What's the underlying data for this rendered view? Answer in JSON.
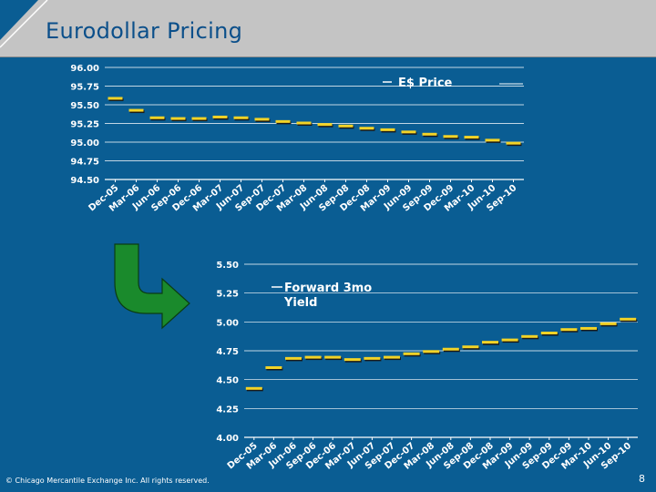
{
  "slide": {
    "title": "Eurodollar Pricing",
    "copyright": "© Chicago Mercantile Exchange Inc. All rights reserved.",
    "page_number": "8"
  },
  "colors": {
    "background": "#0a5d93",
    "header": "#c4c4c4",
    "title_text": "#0b4f8a",
    "series_marker": "#f2d327",
    "arrow": "#1a8a2c"
  },
  "icons": {
    "arrow": "curved-down-right-arrow-icon"
  },
  "chart_data": [
    {
      "type": "line",
      "title": "",
      "x": [
        "Dec-05",
        "Mar-06",
        "Jun-06",
        "Sep-06",
        "Dec-06",
        "Mar-07",
        "Jun-07",
        "Sep-07",
        "Dec-07",
        "Mar-08",
        "Jun-08",
        "Sep-08",
        "Dec-08",
        "Mar-09",
        "Jun-09",
        "Sep-09",
        "Dec-09",
        "Mar-10",
        "Jun-10",
        "Sep-10"
      ],
      "series": [
        {
          "name": "E$ Price",
          "values": [
            95.58,
            95.42,
            95.32,
            95.31,
            95.31,
            95.33,
            95.32,
            95.3,
            95.27,
            95.25,
            95.23,
            95.21,
            95.18,
            95.16,
            95.13,
            95.1,
            95.07,
            95.06,
            95.02,
            94.98
          ]
        }
      ],
      "ylim": [
        94.5,
        96.0
      ],
      "yticks": [
        "94.50",
        "94.75",
        "95.00",
        "95.25",
        "95.50",
        "95.75",
        "96.00"
      ],
      "grid": true,
      "legend": "top-right"
    },
    {
      "type": "line",
      "title": "",
      "x": [
        "Dec-05",
        "Mar-06",
        "Jun-06",
        "Sep-06",
        "Dec-06",
        "Mar-07",
        "Jun-07",
        "Sep-07",
        "Dec-07",
        "Mar-08",
        "Jun-08",
        "Sep-08",
        "Dec-08",
        "Mar-09",
        "Jun-09",
        "Sep-09",
        "Dec-09",
        "Mar-10",
        "Jun-10",
        "Sep-10"
      ],
      "series": [
        {
          "name": "Forward 3mo Yield",
          "values": [
            4.42,
            4.6,
            4.68,
            4.69,
            4.69,
            4.67,
            4.68,
            4.69,
            4.72,
            4.74,
            4.76,
            4.78,
            4.82,
            4.84,
            4.87,
            4.9,
            4.93,
            4.94,
            4.98,
            5.02
          ]
        }
      ],
      "ylim": [
        4.0,
        5.5
      ],
      "yticks": [
        "4.00",
        "4.25",
        "4.50",
        "4.75",
        "5.00",
        "5.25",
        "5.50"
      ],
      "grid": true,
      "legend": "top-left"
    }
  ]
}
